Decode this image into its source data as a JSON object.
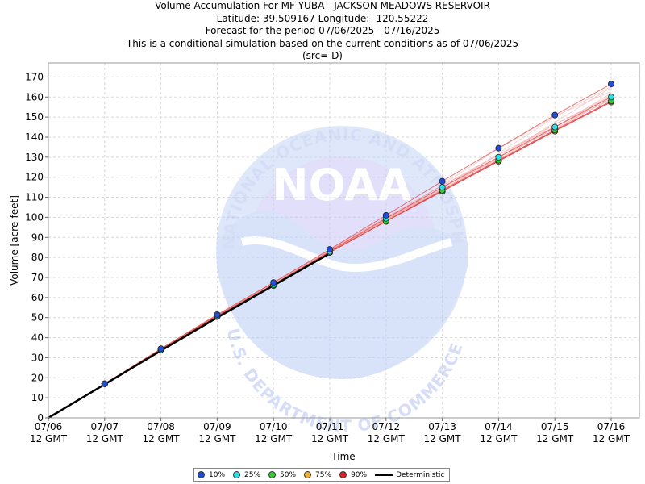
{
  "chart_data": {
    "type": "scatter",
    "title_lines": [
      "Volume Accumulation For MF YUBA - JACKSON MEADOWS RESERVOIR",
      "Latitude: 39.509167 Longitude: -120.55222",
      "Forecast for the period 07/06/2025 - 07/16/2025",
      "This is a conditional simulation based on the current conditions as of 07/06/2025",
      "(src= D)"
    ],
    "xlabel": "Time",
    "ylabel": "Volume [acre-feet]",
    "ylim": [
      0,
      177
    ],
    "yticks": [
      0,
      10,
      20,
      30,
      40,
      50,
      60,
      70,
      80,
      90,
      100,
      110,
      120,
      130,
      140,
      150,
      160,
      170
    ],
    "x_ticks": [
      {
        "date": "07/06",
        "time": "12 GMT"
      },
      {
        "date": "07/07",
        "time": "12 GMT"
      },
      {
        "date": "07/08",
        "time": "12 GMT"
      },
      {
        "date": "07/09",
        "time": "12 GMT"
      },
      {
        "date": "07/10",
        "time": "12 GMT"
      },
      {
        "date": "07/11",
        "time": "12 GMT"
      },
      {
        "date": "07/12",
        "time": "12 GMT"
      },
      {
        "date": "07/13",
        "time": "12 GMT"
      },
      {
        "date": "07/14",
        "time": "12 GMT"
      },
      {
        "date": "07/15",
        "time": "12 GMT"
      },
      {
        "date": "07/16",
        "time": "12 GMT"
      }
    ],
    "grid": true,
    "legend_position": "bottom",
    "series": [
      {
        "name": "10%",
        "color": "#1f4fd6",
        "marker": "circle",
        "values": [
          0,
          17,
          34.5,
          51.5,
          67.5,
          84,
          101,
          118,
          134.5,
          151,
          166.5
        ]
      },
      {
        "name": "25%",
        "color": "#2de0e0",
        "marker": "circle",
        "values": [
          0,
          17,
          34,
          51,
          66.5,
          83,
          99.5,
          115,
          130,
          145,
          160
        ]
      },
      {
        "name": "50%",
        "color": "#33cc33",
        "marker": "circle",
        "values": [
          0,
          17,
          34,
          50.5,
          66,
          82.5,
          98,
          113.5,
          128.5,
          143.5,
          158
        ]
      },
      {
        "name": "75%",
        "color": "#f0b030",
        "marker": "circle",
        "values": [
          0,
          17,
          34,
          50.5,
          66,
          82.5,
          98,
          113,
          128,
          143,
          157.5
        ]
      },
      {
        "name": "90%",
        "color": "#dd2222",
        "marker": "circle",
        "values": [
          0,
          17,
          34,
          50.5,
          66,
          82.5,
          98,
          113,
          128,
          143,
          157.5
        ]
      },
      {
        "name": "Deterministic",
        "color": "#000000",
        "marker": "line",
        "values": [
          0,
          16.7,
          33.5,
          50,
          66,
          82
        ]
      }
    ]
  },
  "legend": {
    "items": [
      {
        "label": "10%",
        "color": "#1f4fd6"
      },
      {
        "label": "25%",
        "color": "#2de0e0"
      },
      {
        "label": "50%",
        "color": "#33cc33"
      },
      {
        "label": "75%",
        "color": "#f0b030"
      },
      {
        "label": "90%",
        "color": "#dd2222"
      }
    ],
    "deterministic_label": "Deterministic"
  },
  "watermark": {
    "logo_text": "NOAA",
    "ring_text_top": "NATIONAL OCEANIC AND ATMOSPHERIC ADMINISTRATION",
    "ring_text_bottom": "U.S. DEPARTMENT OF COMMERCE"
  }
}
